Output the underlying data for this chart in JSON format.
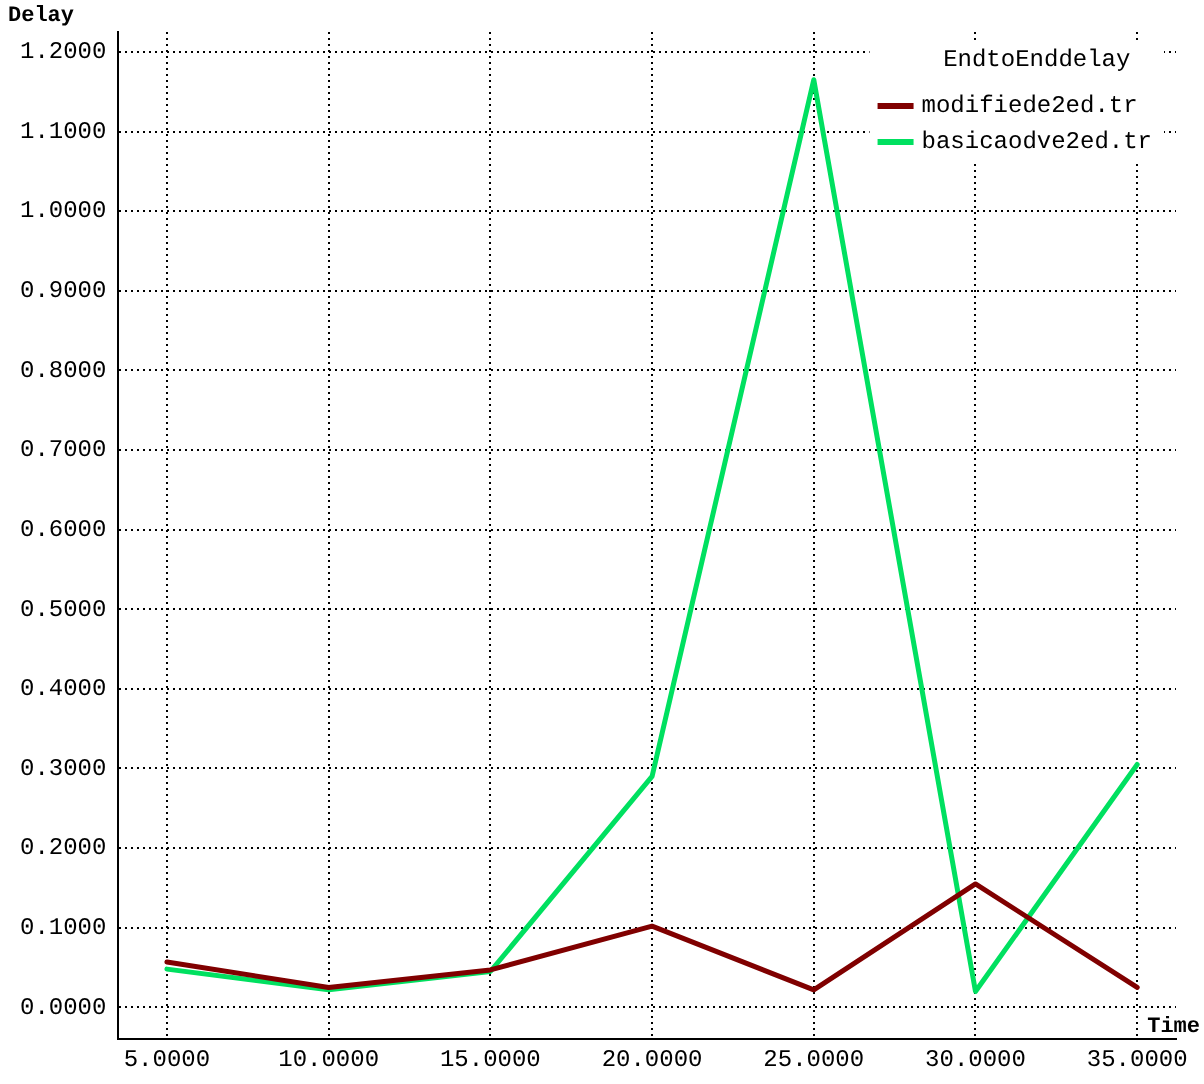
{
  "chart_data": {
    "type": "line",
    "ylabel": "Delay",
    "xlabel": "Time",
    "legend_title": "EndtoEnddelay",
    "x": [
      5,
      10,
      15,
      20,
      25,
      30,
      35
    ],
    "series": [
      {
        "name": "modifiede2ed.tr",
        "color": "#800000",
        "values": [
          0.057,
          0.025,
          0.047,
          0.102,
          0.022,
          0.155,
          0.025
        ]
      },
      {
        "name": "basicaodve2ed.tr",
        "color": "#00e060",
        "values": [
          0.048,
          0.022,
          0.045,
          0.29,
          1.165,
          0.02,
          0.305
        ]
      }
    ],
    "xlim": [
      3.5,
      36.2
    ],
    "ylim": [
      -0.04,
      1.225
    ],
    "xticks": [
      {
        "value": 5,
        "label": "5.0000"
      },
      {
        "value": 10,
        "label": "10.0000"
      },
      {
        "value": 15,
        "label": "15.0000"
      },
      {
        "value": 20,
        "label": "20.0000"
      },
      {
        "value": 25,
        "label": "25.0000"
      },
      {
        "value": 30,
        "label": "30.0000"
      },
      {
        "value": 35,
        "label": "35.0000"
      }
    ],
    "yticks": [
      {
        "value": 0,
        "label": "0.0000"
      },
      {
        "value": 0.1,
        "label": "0.1000"
      },
      {
        "value": 0.2,
        "label": "0.2000"
      },
      {
        "value": 0.3,
        "label": "0.3000"
      },
      {
        "value": 0.4,
        "label": "0.4000"
      },
      {
        "value": 0.5,
        "label": "0.5000"
      },
      {
        "value": 0.6,
        "label": "0.6000"
      },
      {
        "value": 0.7,
        "label": "0.7000"
      },
      {
        "value": 0.8,
        "label": "0.8000"
      },
      {
        "value": 0.9,
        "label": "0.9000"
      },
      {
        "value": 1,
        "label": "1.0000"
      },
      {
        "value": 1.1,
        "label": "1.1000"
      },
      {
        "value": 1.2,
        "label": "1.2000"
      }
    ],
    "grid": true,
    "legend": "top right",
    "marker": "none",
    "line_style": "solid"
  }
}
